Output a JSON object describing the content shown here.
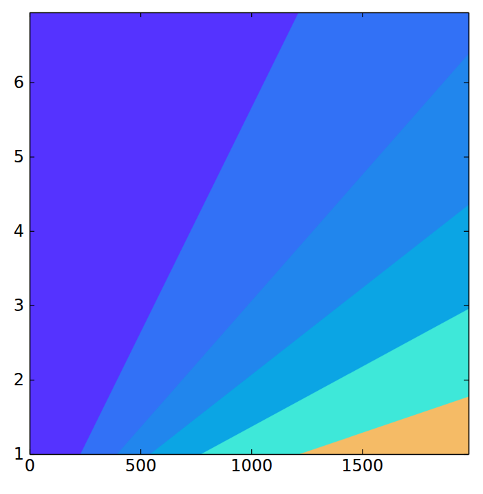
{
  "chart_data": {
    "type": "contour",
    "xlim": [
      0,
      1980
    ],
    "ylim": [
      1,
      6.94
    ],
    "xticks": [
      0,
      500,
      1000,
      1500
    ],
    "yticks": [
      1,
      2,
      3,
      4,
      5,
      6
    ],
    "colors": [
      "#5533ff",
      "#3271f6",
      "#2186ed",
      "#0ba5e4",
      "#3ee8d9",
      "#f5bb66"
    ],
    "boundaries": [
      {
        "x": [
          230,
          1214
        ],
        "y": [
          1,
          6.94
        ]
      },
      {
        "x": [
          395,
          1980
        ],
        "y": [
          1,
          6.38
        ]
      },
      {
        "x": [
          545,
          1980
        ],
        "y": [
          1,
          4.35
        ]
      },
      {
        "x": [
          775,
          1980
        ],
        "y": [
          1,
          2.95
        ]
      },
      {
        "x": [
          1220,
          1980
        ],
        "y": [
          1,
          1.77
        ]
      }
    ]
  }
}
